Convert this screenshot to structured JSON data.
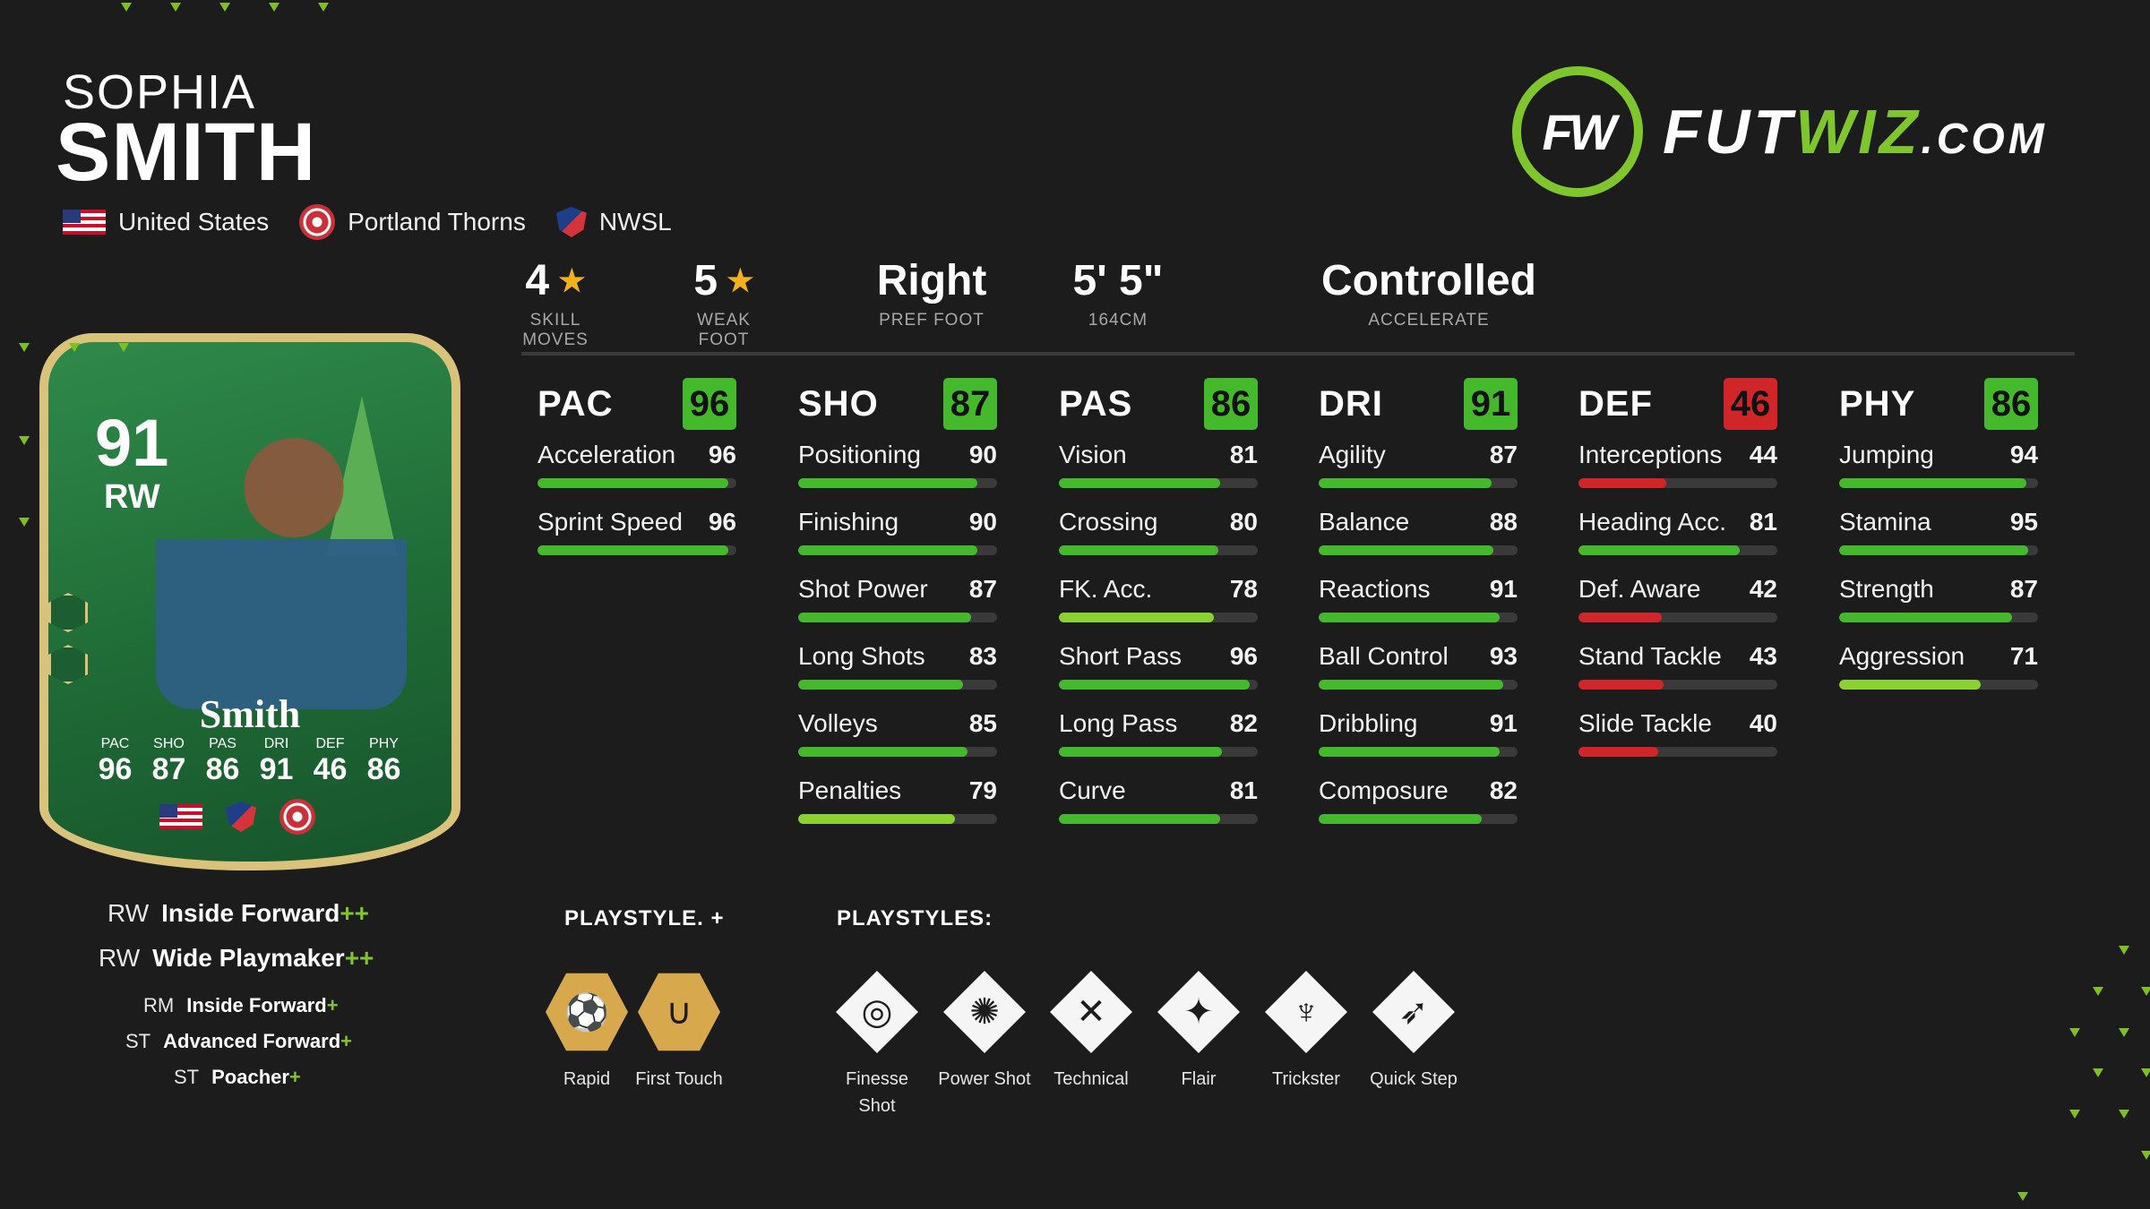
{
  "player": {
    "first_name": "SOPHIA",
    "last_name": "SMITH",
    "nation": "United States",
    "club": "Portland Thorns",
    "league": "NWSL"
  },
  "logo": {
    "mark": "FW",
    "text_a": "FUT",
    "text_b": "WIZ",
    "text_c": ".COM"
  },
  "info": [
    {
      "value": "4",
      "label": "SKILL MOVES",
      "star": true
    },
    {
      "value": "5",
      "label": "WEAK FOOT",
      "star": true
    },
    {
      "value": "Right",
      "label": "PREF FOOT"
    },
    {
      "value": "5' 5\"",
      "label": "164CM"
    },
    {
      "value": "Controlled",
      "label": "ACCELERATE"
    }
  ],
  "card": {
    "rating": "91",
    "position": "RW",
    "name": "Smith",
    "stats": [
      {
        "k": "PAC",
        "n": "96"
      },
      {
        "k": "SHO",
        "n": "87"
      },
      {
        "k": "PAS",
        "n": "86"
      },
      {
        "k": "DRI",
        "n": "91"
      },
      {
        "k": "DEF",
        "n": "46"
      },
      {
        "k": "PHY",
        "n": "86"
      }
    ]
  },
  "stats": [
    {
      "title": "PAC",
      "value": "96",
      "badge_color": "#44b92c",
      "attrs": [
        {
          "name": "Acceleration",
          "value": "96"
        },
        {
          "name": "Sprint Speed",
          "value": "96"
        }
      ]
    },
    {
      "title": "SHO",
      "value": "87",
      "badge_color": "#44b92c",
      "attrs": [
        {
          "name": "Positioning",
          "value": "90"
        },
        {
          "name": "Finishing",
          "value": "90"
        },
        {
          "name": "Shot Power",
          "value": "87"
        },
        {
          "name": "Long Shots",
          "value": "83"
        },
        {
          "name": "Volleys",
          "value": "85"
        },
        {
          "name": "Penalties",
          "value": "79"
        }
      ]
    },
    {
      "title": "PAS",
      "value": "86",
      "badge_color": "#44b92c",
      "attrs": [
        {
          "name": "Vision",
          "value": "81"
        },
        {
          "name": "Crossing",
          "value": "80"
        },
        {
          "name": "FK. Acc.",
          "value": "78"
        },
        {
          "name": "Short Pass",
          "value": "96"
        },
        {
          "name": "Long Pass",
          "value": "82"
        },
        {
          "name": "Curve",
          "value": "81"
        }
      ]
    },
    {
      "title": "DRI",
      "value": "91",
      "badge_color": "#44b92c",
      "attrs": [
        {
          "name": "Agility",
          "value": "87"
        },
        {
          "name": "Balance",
          "value": "88"
        },
        {
          "name": "Reactions",
          "value": "91"
        },
        {
          "name": "Ball Control",
          "value": "93"
        },
        {
          "name": "Dribbling",
          "value": "91"
        },
        {
          "name": "Composure",
          "value": "82"
        }
      ]
    },
    {
      "title": "DEF",
      "value": "46",
      "badge_color": "#d0262a",
      "attrs": [
        {
          "name": "Interceptions",
          "value": "44"
        },
        {
          "name": "Heading Acc.",
          "value": "81"
        },
        {
          "name": "Def. Aware",
          "value": "42"
        },
        {
          "name": "Stand Tackle",
          "value": "43"
        },
        {
          "name": "Slide Tackle",
          "value": "40"
        }
      ]
    },
    {
      "title": "PHY",
      "value": "86",
      "badge_color": "#44b92c",
      "attrs": [
        {
          "name": "Jumping",
          "value": "94"
        },
        {
          "name": "Stamina",
          "value": "95"
        },
        {
          "name": "Strength",
          "value": "87"
        },
        {
          "name": "Aggression",
          "value": "71"
        }
      ]
    }
  ],
  "roles": [
    {
      "pos": "RW",
      "name": "Inside Forward",
      "plus": "++"
    },
    {
      "pos": "RW",
      "name": "Wide Playmaker",
      "plus": "++"
    },
    {
      "pos": "RM",
      "name": "Inside Forward",
      "plus": "+"
    },
    {
      "pos": "ST",
      "name": "Advanced Forward",
      "plus": "+"
    },
    {
      "pos": "ST",
      "name": "Poacher",
      "plus": "+"
    }
  ],
  "playstyles": {
    "plus_title": "PLAYSTYLE. +",
    "title": "PLAYSTYLES:",
    "plus_items": [
      {
        "label": "Rapid",
        "icon": "rapid-icon"
      },
      {
        "label": "First Touch",
        "icon": "first-touch-icon"
      }
    ],
    "items": [
      {
        "label": "Finesse Shot",
        "icon": "finesse-shot-icon"
      },
      {
        "label": "Power Shot",
        "icon": "power-shot-icon"
      },
      {
        "label": "Technical",
        "icon": "technical-icon"
      },
      {
        "label": "Flair",
        "icon": "flair-icon"
      },
      {
        "label": "Trickster",
        "icon": "trickster-icon"
      },
      {
        "label": "Quick Step",
        "icon": "quick-step-icon"
      }
    ]
  }
}
